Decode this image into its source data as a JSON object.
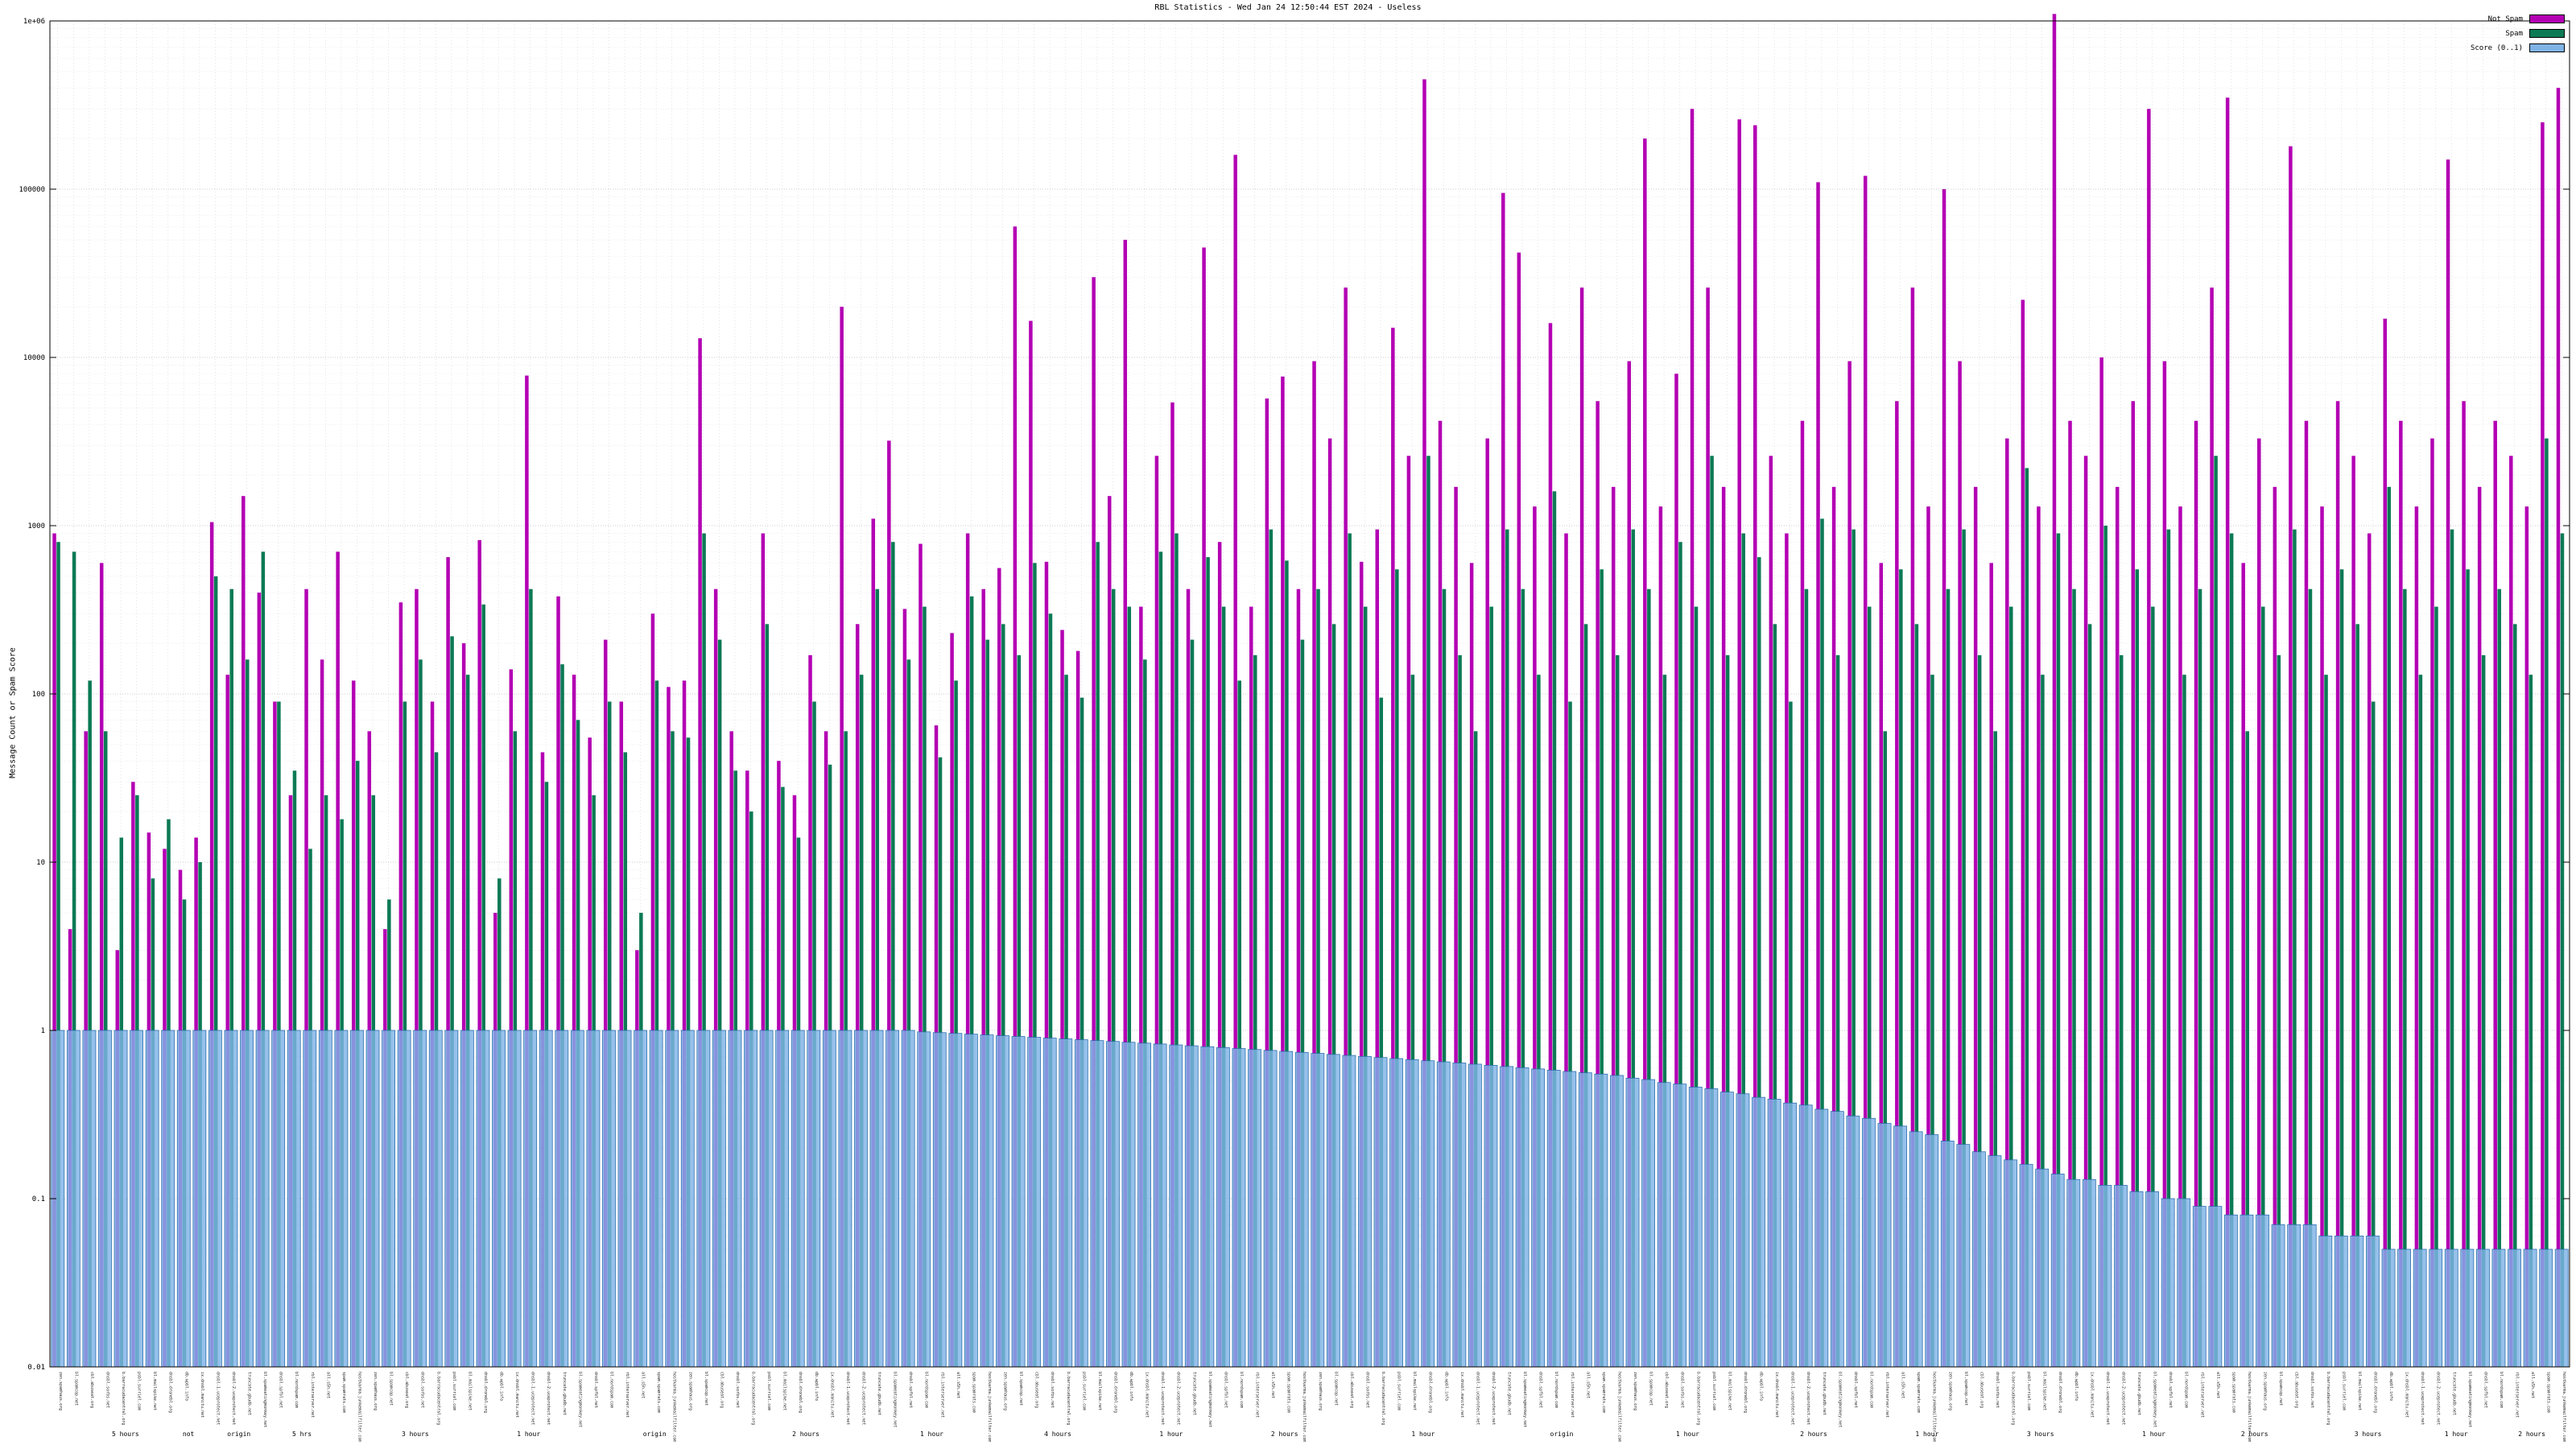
{
  "page": {
    "title": "RBL Statistics - Wed Jan 24 12:50:44 EST 2024 - Useless"
  },
  "chart_data": {
    "type": "bar",
    "title": "RBL Statistics - Wed Jan 24 12:50:44 EST 2024 - Useless",
    "xlabel": "",
    "ylabel": "Message Count or Spam Score",
    "y_scale": "log",
    "ylim": [
      0.01,
      1000000
    ],
    "y_ticks": [
      "0.01",
      "0.1",
      "1",
      "10",
      "100",
      "1000",
      "10000",
      "100000",
      "1e+06"
    ],
    "grid": true,
    "legend_position": "top-right",
    "series": [
      {
        "name": "Not Spam",
        "color": "#b300b3",
        "values": [
          900,
          4,
          60,
          600,
          3,
          30,
          15,
          12,
          9,
          14,
          1050,
          130,
          1500,
          400,
          90,
          25,
          420,
          160,
          700,
          120,
          60,
          4,
          350,
          420,
          90,
          650,
          200,
          820,
          5,
          140,
          7800,
          45,
          380,
          130,
          55,
          210,
          90,
          3,
          300,
          110,
          120,
          13000,
          420,
          60,
          35,
          900,
          40,
          25,
          170,
          60,
          20000,
          260,
          1100,
          3200,
          320,
          780,
          65,
          230,
          900,
          420,
          560,
          60000,
          16500,
          610,
          240,
          180,
          30000,
          1500,
          50000,
          330,
          2600,
          5400,
          420,
          45000,
          800,
          160000,
          330,
          5700,
          7700,
          420,
          9500,
          3300,
          26000,
          610,
          950,
          15000,
          2600,
          450000,
          4200,
          1700,
          600,
          3300,
          95000,
          42000,
          1300,
          16000,
          900,
          26000,
          5500,
          1700,
          9500,
          200000,
          1300,
          8000,
          300000,
          26000,
          1700,
          260000,
          240000,
          2600,
          900,
          4200,
          110000,
          1700,
          9500,
          120000,
          600,
          5500,
          26000,
          1300,
          100000,
          9500,
          1700,
          600,
          3300,
          22000,
          1300,
          1100000,
          4200,
          2600,
          10000,
          1700,
          5500,
          300000,
          9500,
          1300,
          4200,
          26000,
          350000,
          600,
          3300,
          1700,
          180000,
          4200,
          1300,
          5500,
          2600,
          900,
          17000,
          4200,
          1300,
          3300,
          150000,
          5500,
          1700,
          4200,
          2600,
          1300,
          250000,
          400000
        ]
      },
      {
        "name": "Spam",
        "color": "#0c7a55",
        "values": [
          800,
          700,
          120,
          60,
          14,
          25,
          8,
          18,
          6,
          10,
          500,
          420,
          160,
          700,
          90,
          35,
          12,
          25,
          18,
          40,
          25,
          6,
          90,
          160,
          45,
          220,
          130,
          340,
          8,
          60,
          420,
          30,
          150,
          70,
          25,
          90,
          45,
          5,
          120,
          60,
          55,
          900,
          210,
          35,
          20,
          260,
          28,
          14,
          90,
          38,
          60,
          130,
          420,
          800,
          160,
          330,
          42,
          120,
          380,
          210,
          260,
          170,
          600,
          300,
          130,
          95,
          800,
          420,
          330,
          160,
          700,
          900,
          210,
          650,
          330,
          120,
          170,
          950,
          620,
          210,
          420,
          260,
          900,
          330,
          95,
          550,
          130,
          2600,
          420,
          170,
          60,
          330,
          950,
          420,
          130,
          1600,
          90,
          260,
          550,
          170,
          950,
          420,
          130,
          800,
          330,
          2600,
          170,
          900,
          650,
          260,
          90,
          420,
          1100,
          170,
          950,
          330,
          60,
          550,
          260,
          130,
          420,
          950,
          170,
          60,
          330,
          2200,
          130,
          900,
          420,
          260,
          1000,
          170,
          550,
          330,
          950,
          130,
          420,
          2600,
          900,
          60,
          330,
          170,
          950,
          420,
          130,
          550,
          260,
          90,
          1700,
          420,
          130,
          330,
          950,
          550,
          170,
          420,
          260,
          130,
          3300,
          900
        ]
      },
      {
        "name": "Score (0..1)",
        "color": "#7fb3e6",
        "border": "#2f6fae",
        "values": [
          1,
          1,
          1,
          1,
          1,
          1,
          1,
          1,
          1,
          1,
          1,
          1,
          1,
          1,
          1,
          1,
          1,
          1,
          1,
          1,
          1,
          1,
          1,
          1,
          1,
          1,
          1,
          1,
          1,
          1,
          1,
          1,
          1,
          1,
          1,
          1,
          1,
          1,
          1,
          1,
          1,
          1,
          1,
          1,
          1,
          1,
          1,
          1,
          1,
          1,
          1,
          1,
          1,
          1,
          1,
          0.98,
          0.97,
          0.96,
          0.95,
          0.94,
          0.93,
          0.92,
          0.91,
          0.9,
          0.89,
          0.88,
          0.87,
          0.86,
          0.85,
          0.84,
          0.83,
          0.82,
          0.81,
          0.8,
          0.79,
          0.78,
          0.77,
          0.76,
          0.75,
          0.74,
          0.73,
          0.72,
          0.71,
          0.7,
          0.69,
          0.68,
          0.67,
          0.66,
          0.65,
          0.64,
          0.63,
          0.62,
          0.61,
          0.6,
          0.59,
          0.58,
          0.57,
          0.56,
          0.55,
          0.54,
          0.52,
          0.51,
          0.49,
          0.48,
          0.46,
          0.45,
          0.43,
          0.42,
          0.4,
          0.39,
          0.37,
          0.36,
          0.34,
          0.33,
          0.31,
          0.3,
          0.28,
          0.27,
          0.25,
          0.24,
          0.22,
          0.21,
          0.19,
          0.18,
          0.17,
          0.16,
          0.15,
          0.14,
          0.13,
          0.13,
          0.12,
          0.12,
          0.11,
          0.11,
          0.1,
          0.1,
          0.09,
          0.09,
          0.08,
          0.08,
          0.08,
          0.07,
          0.07,
          0.07,
          0.06,
          0.06,
          0.06,
          0.06,
          0.05,
          0.05,
          0.05,
          0.05,
          0.05,
          0.05,
          0.05,
          0.05,
          0.05,
          0.05,
          0.05,
          0.05
        ]
      }
    ],
    "categories": [
      "zen.spamhaus.org",
      "bl.spamcop.net",
      "cbl.abuseat.org",
      "dnsbl.sorbs.net",
      "b.barracudacentral.org",
      "psbl.surriel.com",
      "bl.mailspike.net",
      "dnsbl.dronebl.org",
      "db.wpbl.info",
      "ix.dnsbl.manitu.net",
      "dnsbl-1.uceprotect.net",
      "dnsbl-2.uceprotect.net",
      "truncate.gbudb.net",
      "bl.spameatingmonkey.net",
      "dnsbl.spfbl.net",
      "bl.nordspam.com",
      "rbl.interserver.net",
      "all.s5h.net",
      "spam.spamrats.com",
      "hostkarma.junkemailfilter.com",
      "zen.spamhaus.org",
      "bl.spamcop.net",
      "cbl.abuseat.org",
      "dnsbl.sorbs.net",
      "b.barracudacentral.org",
      "psbl.surriel.com",
      "bl.mailspike.net",
      "dnsbl.dronebl.org",
      "db.wpbl.info",
      "ix.dnsbl.manitu.net",
      "dnsbl-1.uceprotect.net",
      "dnsbl-2.uceprotect.net",
      "truncate.gbudb.net",
      "bl.spameatingmonkey.net",
      "dnsbl.spfbl.net",
      "bl.nordspam.com",
      "rbl.interserver.net",
      "all.s5h.net",
      "spam.spamrats.com",
      "hostkarma.junkemailfilter.com",
      "zen.spamhaus.org",
      "bl.spamcop.net",
      "cbl.abuseat.org",
      "dnsbl.sorbs.net",
      "b.barracudacentral.org",
      "psbl.surriel.com",
      "bl.mailspike.net",
      "dnsbl.dronebl.org",
      "db.wpbl.info",
      "ix.dnsbl.manitu.net",
      "dnsbl-1.uceprotect.net",
      "dnsbl-2.uceprotect.net",
      "truncate.gbudb.net",
      "bl.spameatingmonkey.net",
      "dnsbl.spfbl.net",
      "bl.nordspam.com",
      "rbl.interserver.net",
      "all.s5h.net",
      "spam.spamrats.com",
      "hostkarma.junkemailfilter.com",
      "zen.spamhaus.org",
      "bl.spamcop.net",
      "cbl.abuseat.org",
      "dnsbl.sorbs.net",
      "b.barracudacentral.org",
      "psbl.surriel.com",
      "bl.mailspike.net",
      "dnsbl.dronebl.org",
      "db.wpbl.info",
      "ix.dnsbl.manitu.net",
      "dnsbl-1.uceprotect.net",
      "dnsbl-2.uceprotect.net",
      "truncate.gbudb.net",
      "bl.spameatingmonkey.net",
      "dnsbl.spfbl.net",
      "bl.nordspam.com",
      "rbl.interserver.net",
      "all.s5h.net",
      "spam.spamrats.com",
      "hostkarma.junkemailfilter.com",
      "zen.spamhaus.org",
      "bl.spamcop.net",
      "cbl.abuseat.org",
      "dnsbl.sorbs.net",
      "b.barracudacentral.org",
      "psbl.surriel.com",
      "bl.mailspike.net",
      "dnsbl.dronebl.org",
      "db.wpbl.info",
      "ix.dnsbl.manitu.net",
      "dnsbl-1.uceprotect.net",
      "dnsbl-2.uceprotect.net",
      "truncate.gbudb.net",
      "bl.spameatingmonkey.net",
      "dnsbl.spfbl.net",
      "bl.nordspam.com",
      "rbl.interserver.net",
      "all.s5h.net",
      "spam.spamrats.com",
      "hostkarma.junkemailfilter.com",
      "zen.spamhaus.org",
      "bl.spamcop.net",
      "cbl.abuseat.org",
      "dnsbl.sorbs.net",
      "b.barracudacentral.org",
      "psbl.surriel.com",
      "bl.mailspike.net",
      "dnsbl.dronebl.org",
      "db.wpbl.info",
      "ix.dnsbl.manitu.net",
      "dnsbl-1.uceprotect.net",
      "dnsbl-2.uceprotect.net",
      "truncate.gbudb.net",
      "bl.spameatingmonkey.net",
      "dnsbl.spfbl.net",
      "bl.nordspam.com",
      "rbl.interserver.net",
      "all.s5h.net",
      "spam.spamrats.com",
      "hostkarma.junkemailfilter.com",
      "zen.spamhaus.org",
      "bl.spamcop.net",
      "cbl.abuseat.org",
      "dnsbl.sorbs.net",
      "b.barracudacentral.org",
      "psbl.surriel.com",
      "bl.mailspike.net",
      "dnsbl.dronebl.org",
      "db.wpbl.info",
      "ix.dnsbl.manitu.net",
      "dnsbl-1.uceprotect.net",
      "dnsbl-2.uceprotect.net",
      "truncate.gbudb.net",
      "bl.spameatingmonkey.net",
      "dnsbl.spfbl.net",
      "bl.nordspam.com",
      "rbl.interserver.net",
      "all.s5h.net",
      "spam.spamrats.com",
      "hostkarma.junkemailfilter.com",
      "zen.spamhaus.org",
      "bl.spamcop.net",
      "cbl.abuseat.org",
      "dnsbl.sorbs.net",
      "b.barracudacentral.org",
      "psbl.surriel.com",
      "bl.mailspike.net",
      "dnsbl.dronebl.org",
      "db.wpbl.info",
      "ix.dnsbl.manitu.net",
      "dnsbl-1.uceprotect.net",
      "dnsbl-2.uceprotect.net",
      "truncate.gbudb.net",
      "bl.spameatingmonkey.net",
      "dnsbl.spfbl.net",
      "bl.nordspam.com",
      "rbl.interserver.net",
      "all.s5h.net",
      "spam.spamrats.com",
      "hostkarma.junkemailfilter.com"
    ],
    "x_group_labels": [
      {
        "pos": 0.03,
        "text": "5 hours"
      },
      {
        "pos": 0.055,
        "text": "not"
      },
      {
        "pos": 0.075,
        "text": "origin"
      },
      {
        "pos": 0.1,
        "text": "5 hrs"
      },
      {
        "pos": 0.145,
        "text": "3 hours"
      },
      {
        "pos": 0.19,
        "text": "1 hour"
      },
      {
        "pos": 0.24,
        "text": "origin"
      },
      {
        "pos": 0.3,
        "text": "2 hours"
      },
      {
        "pos": 0.35,
        "text": "1 hour"
      },
      {
        "pos": 0.4,
        "text": "4 hours"
      },
      {
        "pos": 0.445,
        "text": "1 hour"
      },
      {
        "pos": 0.49,
        "text": "2 hours"
      },
      {
        "pos": 0.545,
        "text": "1 hour"
      },
      {
        "pos": 0.6,
        "text": "origin"
      },
      {
        "pos": 0.65,
        "text": "1 hour"
      },
      {
        "pos": 0.7,
        "text": "2 hours"
      },
      {
        "pos": 0.745,
        "text": "1 hour"
      },
      {
        "pos": 0.79,
        "text": "3 hours"
      },
      {
        "pos": 0.835,
        "text": "1 hour"
      },
      {
        "pos": 0.875,
        "text": "2 hours"
      },
      {
        "pos": 0.92,
        "text": "3 hours"
      },
      {
        "pos": 0.955,
        "text": "1 hour"
      },
      {
        "pos": 0.985,
        "text": "2 hours"
      }
    ]
  }
}
